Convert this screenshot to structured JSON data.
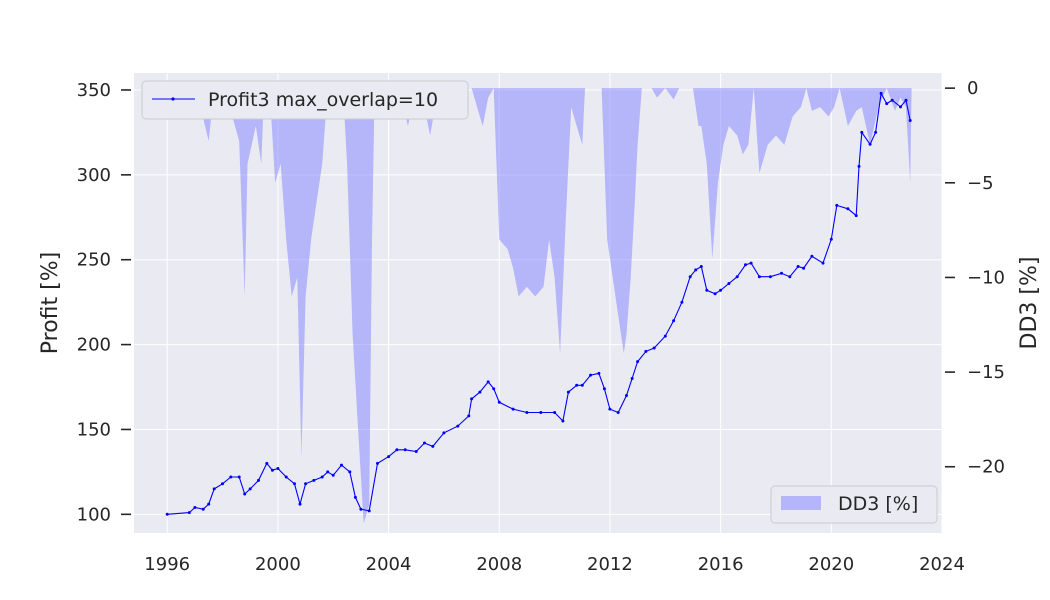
{
  "chart_data": {
    "type": "line",
    "style": {
      "background": "#eaeaf2",
      "grid": true,
      "grid_color": "#ffffff"
    },
    "x_axis": {
      "range": [
        1994.8,
        2024.0
      ],
      "ticks": [
        1996,
        2000,
        2004,
        2008,
        2012,
        2016,
        2020,
        2024
      ],
      "tick_labels": [
        "1996",
        "2000",
        "2004",
        "2008",
        "2012",
        "2016",
        "2020",
        "2024"
      ],
      "label": ""
    },
    "y_left": {
      "label": "Profit [%]",
      "range": [
        89,
        360
      ],
      "ticks": [
        100,
        150,
        200,
        250,
        300,
        350
      ],
      "tick_labels": [
        "100",
        "150",
        "200",
        "250",
        "300",
        "350"
      ]
    },
    "y_right": {
      "label": "DD3 [%]",
      "range": [
        -23.5,
        0.8
      ],
      "ticks": [
        0,
        -5,
        -10,
        -15,
        -20
      ],
      "tick_labels": [
        "0",
        "−5",
        "−10",
        "−15",
        "−20"
      ]
    },
    "series": [
      {
        "name": "Profit3 max_overlap=10",
        "axis": "left",
        "kind": "line-with-markers",
        "color": "#0000ff",
        "legend_position": "upper-left",
        "points": [
          [
            1996.0,
            100
          ],
          [
            1996.8,
            101
          ],
          [
            1997.0,
            104
          ],
          [
            1997.3,
            103
          ],
          [
            1997.5,
            106
          ],
          [
            1997.7,
            115
          ],
          [
            1998.0,
            118
          ],
          [
            1998.3,
            122
          ],
          [
            1998.6,
            122
          ],
          [
            1998.8,
            112
          ],
          [
            1999.0,
            115
          ],
          [
            1999.3,
            120
          ],
          [
            1999.6,
            130
          ],
          [
            1999.8,
            126
          ],
          [
            2000.0,
            127
          ],
          [
            2000.3,
            122
          ],
          [
            2000.6,
            118
          ],
          [
            2000.8,
            106
          ],
          [
            2001.0,
            118
          ],
          [
            2001.3,
            120
          ],
          [
            2001.6,
            122
          ],
          [
            2001.8,
            125
          ],
          [
            2002.0,
            123
          ],
          [
            2002.3,
            129
          ],
          [
            2002.6,
            125
          ],
          [
            2002.8,
            110
          ],
          [
            2003.0,
            103
          ],
          [
            2003.3,
            102
          ],
          [
            2003.6,
            130
          ],
          [
            2004.0,
            134
          ],
          [
            2004.3,
            138
          ],
          [
            2004.6,
            138
          ],
          [
            2005.0,
            137
          ],
          [
            2005.3,
            142
          ],
          [
            2005.6,
            140
          ],
          [
            2006.0,
            148
          ],
          [
            2006.5,
            152
          ],
          [
            2006.9,
            158
          ],
          [
            2007.0,
            168
          ],
          [
            2007.3,
            172
          ],
          [
            2007.6,
            178
          ],
          [
            2007.8,
            174
          ],
          [
            2008.0,
            166
          ],
          [
            2008.5,
            162
          ],
          [
            2009.0,
            160
          ],
          [
            2009.5,
            160
          ],
          [
            2010.0,
            160
          ],
          [
            2010.3,
            155
          ],
          [
            2010.5,
            172
          ],
          [
            2010.8,
            176
          ],
          [
            2011.0,
            176
          ],
          [
            2011.3,
            182
          ],
          [
            2011.6,
            183
          ],
          [
            2011.8,
            174
          ],
          [
            2012.0,
            162
          ],
          [
            2012.3,
            160
          ],
          [
            2012.6,
            170
          ],
          [
            2012.8,
            180
          ],
          [
            2013.0,
            190
          ],
          [
            2013.3,
            196
          ],
          [
            2013.6,
            198
          ],
          [
            2014.0,
            205
          ],
          [
            2014.3,
            214
          ],
          [
            2014.6,
            225
          ],
          [
            2014.9,
            240
          ],
          [
            2015.1,
            244
          ],
          [
            2015.3,
            246
          ],
          [
            2015.5,
            232
          ],
          [
            2015.8,
            230
          ],
          [
            2016.0,
            232
          ],
          [
            2016.3,
            236
          ],
          [
            2016.6,
            240
          ],
          [
            2016.9,
            247
          ],
          [
            2017.1,
            248
          ],
          [
            2017.4,
            240
          ],
          [
            2017.8,
            240
          ],
          [
            2018.2,
            242
          ],
          [
            2018.5,
            240
          ],
          [
            2018.8,
            246
          ],
          [
            2019.0,
            245
          ],
          [
            2019.3,
            252
          ],
          [
            2019.7,
            248
          ],
          [
            2020.0,
            262
          ],
          [
            2020.2,
            282
          ],
          [
            2020.6,
            280
          ],
          [
            2020.9,
            276
          ],
          [
            2021.0,
            305
          ],
          [
            2021.1,
            325
          ],
          [
            2021.4,
            318
          ],
          [
            2021.6,
            325
          ],
          [
            2021.8,
            348
          ],
          [
            2022.0,
            342
          ],
          [
            2022.2,
            344
          ],
          [
            2022.5,
            340
          ],
          [
            2022.7,
            344
          ],
          [
            2022.85,
            332
          ]
        ]
      },
      {
        "name": "DD3 [%]",
        "axis": "right",
        "kind": "area",
        "color": "#8080ff",
        "opacity": 0.5,
        "legend_position": "lower-right",
        "points": [
          [
            1996.8,
            0
          ],
          [
            1997.0,
            -0.5
          ],
          [
            1997.3,
            -1.6
          ],
          [
            1997.5,
            -2.8
          ],
          [
            1997.7,
            0
          ],
          [
            1998.1,
            0
          ],
          [
            1998.3,
            -1.2
          ],
          [
            1998.6,
            -2.8
          ],
          [
            1998.8,
            -11.0
          ],
          [
            1998.9,
            -4.0
          ],
          [
            1999.2,
            -2.0
          ],
          [
            1999.4,
            -4.0
          ],
          [
            1999.5,
            0
          ],
          [
            1999.7,
            0
          ],
          [
            1999.9,
            -5.0
          ],
          [
            2000.1,
            -4.0
          ],
          [
            2000.3,
            -8.0
          ],
          [
            2000.5,
            -11.0
          ],
          [
            2000.7,
            -10.0
          ],
          [
            2000.85,
            -19.5
          ],
          [
            2001.0,
            -11.0
          ],
          [
            2001.2,
            -8.0
          ],
          [
            2001.4,
            -6.0
          ],
          [
            2001.6,
            -4.0
          ],
          [
            2001.8,
            0
          ],
          [
            2002.0,
            0
          ],
          [
            2002.2,
            -1.0
          ],
          [
            2002.35,
            0
          ],
          [
            2002.5,
            -4.0
          ],
          [
            2002.7,
            -13.0
          ],
          [
            2002.9,
            -18.0
          ],
          [
            2003.1,
            -23.0
          ],
          [
            2003.3,
            -22.0
          ],
          [
            2003.4,
            -8.0
          ],
          [
            2003.5,
            0
          ],
          [
            2004.0,
            0
          ],
          [
            2004.2,
            -1.5
          ],
          [
            2004.4,
            0
          ],
          [
            2004.7,
            -2.0
          ],
          [
            2005.0,
            0
          ],
          [
            2005.3,
            -1.0
          ],
          [
            2005.5,
            -2.5
          ],
          [
            2005.8,
            0
          ],
          [
            2007.0,
            0
          ],
          [
            2007.2,
            -1.0
          ],
          [
            2007.4,
            -2.0
          ],
          [
            2007.6,
            -0.5
          ],
          [
            2007.8,
            0
          ],
          [
            2008.0,
            -8.0
          ],
          [
            2008.3,
            -8.5
          ],
          [
            2008.5,
            -9.5
          ],
          [
            2008.7,
            -11.0
          ],
          [
            2009.0,
            -10.5
          ],
          [
            2009.3,
            -11.0
          ],
          [
            2009.6,
            -10.5
          ],
          [
            2009.8,
            -8.0
          ],
          [
            2010.0,
            -10.0
          ],
          [
            2010.2,
            -14.0
          ],
          [
            2010.4,
            -7.0
          ],
          [
            2010.6,
            -1.0
          ],
          [
            2010.8,
            -2.0
          ],
          [
            2011.0,
            -3.0
          ],
          [
            2011.1,
            0
          ],
          [
            2011.7,
            0
          ],
          [
            2011.9,
            -8.0
          ],
          [
            2012.1,
            -10.0
          ],
          [
            2012.3,
            -12.0
          ],
          [
            2012.5,
            -14.0
          ],
          [
            2012.6,
            -13.0
          ],
          [
            2012.75,
            -10.0
          ],
          [
            2012.9,
            -6.0
          ],
          [
            2013.0,
            -3.0
          ],
          [
            2013.15,
            0
          ],
          [
            2013.5,
            0
          ],
          [
            2013.7,
            -0.5
          ],
          [
            2014.0,
            0
          ],
          [
            2014.3,
            -0.6
          ],
          [
            2014.5,
            0
          ],
          [
            2015.0,
            0
          ],
          [
            2015.2,
            -2.0
          ],
          [
            2015.3,
            -2.0
          ],
          [
            2015.5,
            -4.0
          ],
          [
            2015.7,
            -9.0
          ],
          [
            2015.9,
            -5.0
          ],
          [
            2016.1,
            -3.0
          ],
          [
            2016.3,
            -2.0
          ],
          [
            2016.6,
            -2.5
          ],
          [
            2016.8,
            -3.5
          ],
          [
            2017.0,
            -3.0
          ],
          [
            2017.2,
            0
          ],
          [
            2017.4,
            -4.5
          ],
          [
            2017.7,
            -3.0
          ],
          [
            2018.0,
            -2.5
          ],
          [
            2018.3,
            -3.0
          ],
          [
            2018.6,
            -1.5
          ],
          [
            2018.9,
            -1.0
          ],
          [
            2019.1,
            0
          ],
          [
            2019.3,
            -1.2
          ],
          [
            2019.6,
            -1.0
          ],
          [
            2019.9,
            -1.5
          ],
          [
            2020.1,
            -1.0
          ],
          [
            2020.3,
            0
          ],
          [
            2020.6,
            -2.0
          ],
          [
            2020.9,
            -1.2
          ],
          [
            2021.1,
            -1.0
          ],
          [
            2021.4,
            -3.0
          ],
          [
            2021.7,
            -1.0
          ],
          [
            2022.0,
            0
          ],
          [
            2022.3,
            -1.2
          ],
          [
            2022.5,
            -0.5
          ],
          [
            2022.7,
            -1.0
          ],
          [
            2022.85,
            -5.0
          ],
          [
            2022.9,
            0
          ]
        ]
      }
    ]
  }
}
